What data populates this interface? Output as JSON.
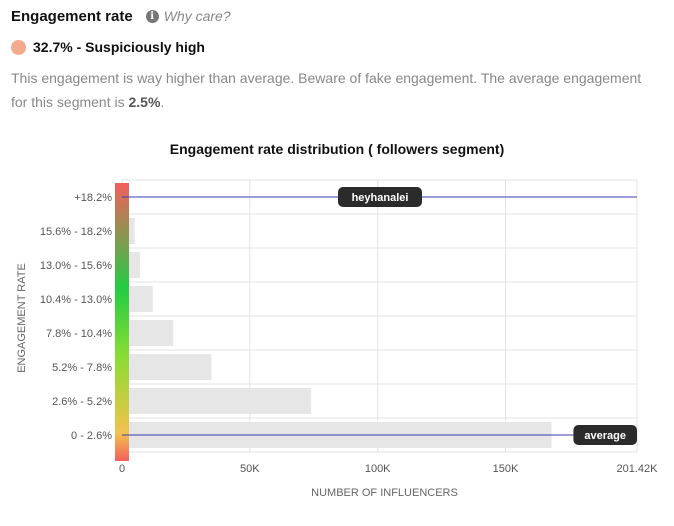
{
  "header": {
    "title": "Engagement rate",
    "info_icon": "info-icon",
    "why_label": "Why care?"
  },
  "status": {
    "text": "32.7% - Suspiciously high",
    "dot_color": "#f4a98c"
  },
  "description": {
    "text": "This engagement is way higher than average. Beware of fake engagement. The average engagement for this segment is ",
    "highlight": "2.5%",
    "suffix": "."
  },
  "chart_data": {
    "type": "bar",
    "orientation": "horizontal",
    "title": "Engagement rate distribution ( followers segment)",
    "xlabel": "NUMBER OF INFLUENCERS",
    "ylabel": "ENGAGEMENT RATE",
    "xlim": [
      0,
      201420
    ],
    "x_ticks": [
      "0",
      "50K",
      "100K",
      "150K",
      "201.42K"
    ],
    "x_tick_values": [
      0,
      50000,
      100000,
      150000,
      201420
    ],
    "categories": [
      "+18.2%",
      "15.6% - 18.2%",
      "13.0% - 15.6%",
      "10.4% - 13.0%",
      "7.8% - 10.4%",
      "5.2% - 7.8%",
      "2.6% - 5.2%",
      "0 - 2.6%"
    ],
    "values": [
      0,
      5000,
      7000,
      12000,
      20000,
      35000,
      74000,
      168000
    ],
    "bar_color": "#e6e6e6",
    "grid": true,
    "markers": [
      {
        "label": "heyhanalei",
        "category": "+18.2%",
        "color": "#3b3bb3"
      },
      {
        "label": "average",
        "category": "0 - 2.6%",
        "color": "#3b3bb3"
      }
    ],
    "gradient_colors": [
      "#f25f5c",
      "#22cc44",
      "#88dd33",
      "#f2c14e",
      "#f25f5c"
    ]
  }
}
